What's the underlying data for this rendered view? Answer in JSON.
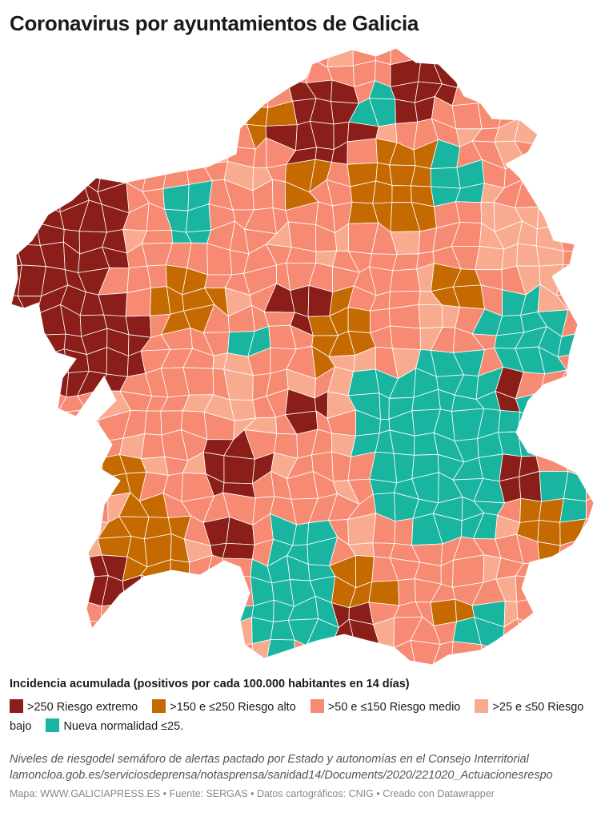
{
  "title": "Coronavirus por ayuntamientos de Galicia",
  "legend": {
    "title": "Incidencia acumulada (positivos por cada 100.000 habitantes en 14 días)",
    "items": [
      {
        "key": "extremo",
        "label": ">250 Riesgo extremo",
        "color": "#8b1e18"
      },
      {
        "key": "alto",
        "label": ">150 e ≤250 Riesgo alto",
        "color": "#c56a00"
      },
      {
        "key": "medio",
        "label": ">50 e ≤150 Riesgo medio",
        "color": "#f68a72"
      },
      {
        "key": "bajo",
        "label": ">25 e ≤50 Riesgo bajo",
        "color": "#f9ab90"
      },
      {
        "key": "normal",
        "label": "Nueva normalidad ≤25.",
        "color": "#1ab5a0"
      }
    ]
  },
  "notes": {
    "line1": "Niveles de riesgodel semáforo de alertas pactado por Estado y autonomías en el Consejo Interritorial",
    "line2": "lamoncloa.gob.es/serviciosdeprensa/notasprensa/sanidad14/Documents/2020/221020_Actuacionesrespo"
  },
  "footer": {
    "map": "Mapa: WWW.GALICIAPRESS.ES",
    "source": "Fuente: SERGAS",
    "geo": "Datos cartográficos: CNIG",
    "tool": "Creado con Datawrapper",
    "separator": "•"
  }
}
